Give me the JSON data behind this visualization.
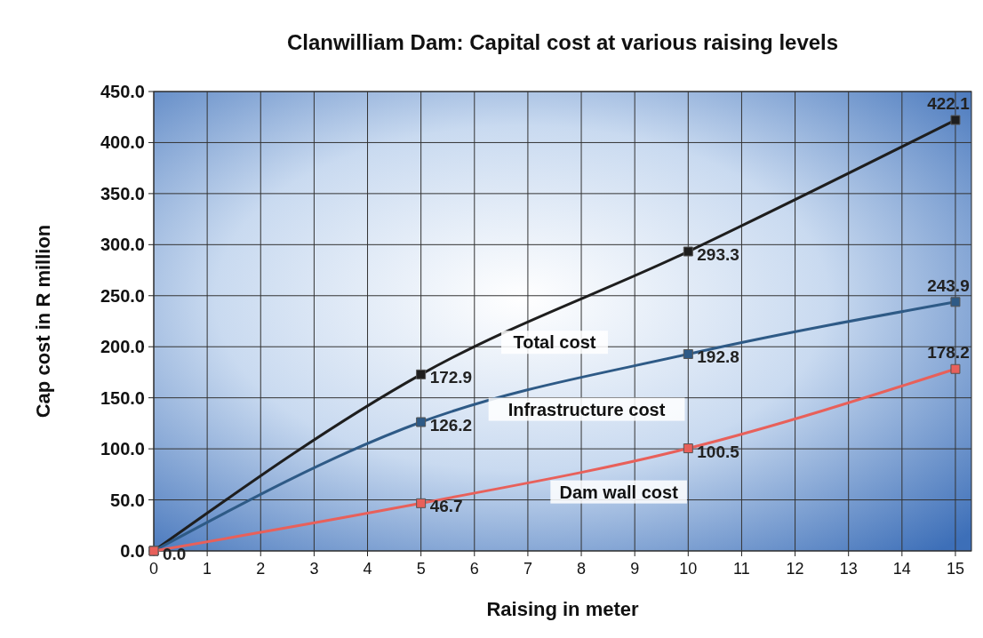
{
  "chart_data": {
    "type": "line",
    "title": "Clanwilliam Dam: Capital cost at various raising levels",
    "xlabel": "Raising in meter",
    "ylabel": "Cap cost in R million",
    "x": [
      0,
      5,
      10,
      15
    ],
    "series": [
      {
        "name": "Total cost",
        "color": "#1e1e1e",
        "values": [
          0,
          172.9,
          293.3,
          422.1
        ],
        "value_labels": [
          null,
          "172.9",
          "293.3",
          "422.1"
        ]
      },
      {
        "name": "Infrastructure cost",
        "color": "#2e5a86",
        "values": [
          0,
          126.2,
          192.8,
          243.9
        ],
        "value_labels": [
          null,
          "126.2",
          "192.8",
          "243.9"
        ]
      },
      {
        "name": "Dam wall cost",
        "color": "#e8605a",
        "values": [
          0,
          46.7,
          100.5,
          178.2
        ],
        "value_labels": [
          "0.0",
          "46.7",
          "100.5",
          "178.2"
        ]
      }
    ],
    "xlim": [
      0,
      15.3
    ],
    "xticks": [
      0,
      1,
      2,
      3,
      4,
      5,
      6,
      7,
      8,
      9,
      10,
      11,
      12,
      13,
      14,
      15
    ],
    "ylim": [
      0,
      450
    ],
    "yticks": [
      {
        "value": 0,
        "label": "0.0"
      },
      {
        "value": 50,
        "label": "50.0"
      },
      {
        "value": 100,
        "label": "100.0"
      },
      {
        "value": 150,
        "label": "150.0"
      },
      {
        "value": 200,
        "label": "200.0"
      },
      {
        "value": 250,
        "label": "250.0"
      },
      {
        "value": 300,
        "label": "300.0"
      },
      {
        "value": 350,
        "label": "350.0"
      },
      {
        "value": 400,
        "label": "400.0"
      },
      {
        "value": 450,
        "label": "450.0"
      }
    ],
    "grid": true,
    "marker": "square",
    "line_style": "solid"
  }
}
